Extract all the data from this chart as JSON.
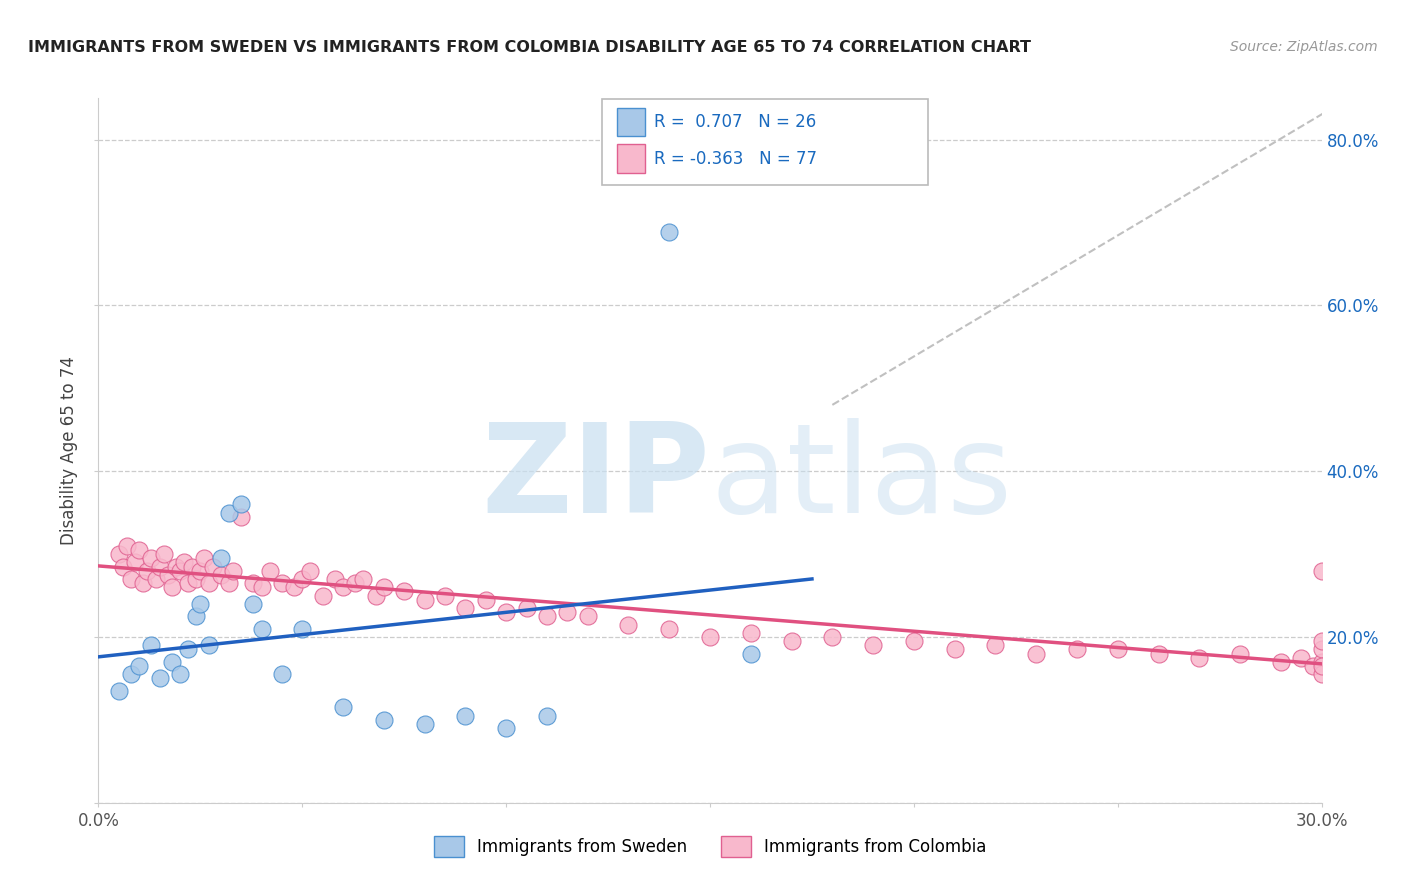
{
  "title": "IMMIGRANTS FROM SWEDEN VS IMMIGRANTS FROM COLOMBIA DISABILITY AGE 65 TO 74 CORRELATION CHART",
  "source": "Source: ZipAtlas.com",
  "ylabel": "Disability Age 65 to 74",
  "xlim": [
    0.0,
    0.3
  ],
  "ylim": [
    0.0,
    0.85
  ],
  "x_tick_vals": [
    0.0,
    0.05,
    0.1,
    0.15,
    0.2,
    0.25,
    0.3
  ],
  "x_tick_labels": [
    "0.0%",
    "",
    "",
    "",
    "",
    "",
    "30.0%"
  ],
  "y_tick_vals": [
    0.0,
    0.2,
    0.4,
    0.6,
    0.8
  ],
  "y_tick_labels_right": [
    "",
    "20.0%",
    "40.0%",
    "60.0%",
    "80.0%"
  ],
  "sweden_R": 0.707,
  "sweden_N": 26,
  "colombia_R": -0.363,
  "colombia_N": 77,
  "sweden_fill": "#a8c8e8",
  "sweden_edge": "#4a90d0",
  "colombia_fill": "#f8b8cc",
  "colombia_edge": "#e06090",
  "sweden_line": "#2060c0",
  "colombia_line": "#e05080",
  "grid_color": "#cccccc",
  "diag_color": "#c0c0c0",
  "legend_text_color": "#1a6abf",
  "watermark_color": "#c8dff0",
  "sweden_x": [
    0.005,
    0.008,
    0.01,
    0.013,
    0.015,
    0.018,
    0.02,
    0.022,
    0.024,
    0.025,
    0.027,
    0.03,
    0.032,
    0.035,
    0.038,
    0.04,
    0.045,
    0.05,
    0.06,
    0.07,
    0.08,
    0.09,
    0.1,
    0.11,
    0.14,
    0.16
  ],
  "sweden_y": [
    0.135,
    0.155,
    0.165,
    0.19,
    0.15,
    0.17,
    0.155,
    0.185,
    0.225,
    0.24,
    0.19,
    0.295,
    0.35,
    0.36,
    0.24,
    0.21,
    0.155,
    0.21,
    0.115,
    0.1,
    0.095,
    0.105,
    0.09,
    0.105,
    0.688,
    0.18
  ],
  "colombia_x": [
    0.005,
    0.006,
    0.007,
    0.008,
    0.009,
    0.01,
    0.011,
    0.012,
    0.013,
    0.014,
    0.015,
    0.016,
    0.017,
    0.018,
    0.019,
    0.02,
    0.021,
    0.022,
    0.023,
    0.024,
    0.025,
    0.026,
    0.027,
    0.028,
    0.03,
    0.032,
    0.033,
    0.035,
    0.038,
    0.04,
    0.042,
    0.045,
    0.048,
    0.05,
    0.052,
    0.055,
    0.058,
    0.06,
    0.063,
    0.065,
    0.068,
    0.07,
    0.075,
    0.08,
    0.085,
    0.09,
    0.095,
    0.1,
    0.105,
    0.11,
    0.115,
    0.12,
    0.13,
    0.14,
    0.15,
    0.16,
    0.17,
    0.18,
    0.19,
    0.2,
    0.21,
    0.22,
    0.23,
    0.24,
    0.25,
    0.26,
    0.27,
    0.28,
    0.29,
    0.295,
    0.298,
    0.3,
    0.3,
    0.3,
    0.3,
    0.3,
    0.3
  ],
  "colombia_y": [
    0.3,
    0.285,
    0.31,
    0.27,
    0.29,
    0.305,
    0.265,
    0.28,
    0.295,
    0.27,
    0.285,
    0.3,
    0.275,
    0.26,
    0.285,
    0.28,
    0.29,
    0.265,
    0.285,
    0.27,
    0.28,
    0.295,
    0.265,
    0.285,
    0.275,
    0.265,
    0.28,
    0.345,
    0.265,
    0.26,
    0.28,
    0.265,
    0.26,
    0.27,
    0.28,
    0.25,
    0.27,
    0.26,
    0.265,
    0.27,
    0.25,
    0.26,
    0.255,
    0.245,
    0.25,
    0.235,
    0.245,
    0.23,
    0.235,
    0.225,
    0.23,
    0.225,
    0.215,
    0.21,
    0.2,
    0.205,
    0.195,
    0.2,
    0.19,
    0.195,
    0.185,
    0.19,
    0.18,
    0.185,
    0.185,
    0.18,
    0.175,
    0.18,
    0.17,
    0.175,
    0.165,
    0.17,
    0.185,
    0.195,
    0.155,
    0.165,
    0.28
  ]
}
